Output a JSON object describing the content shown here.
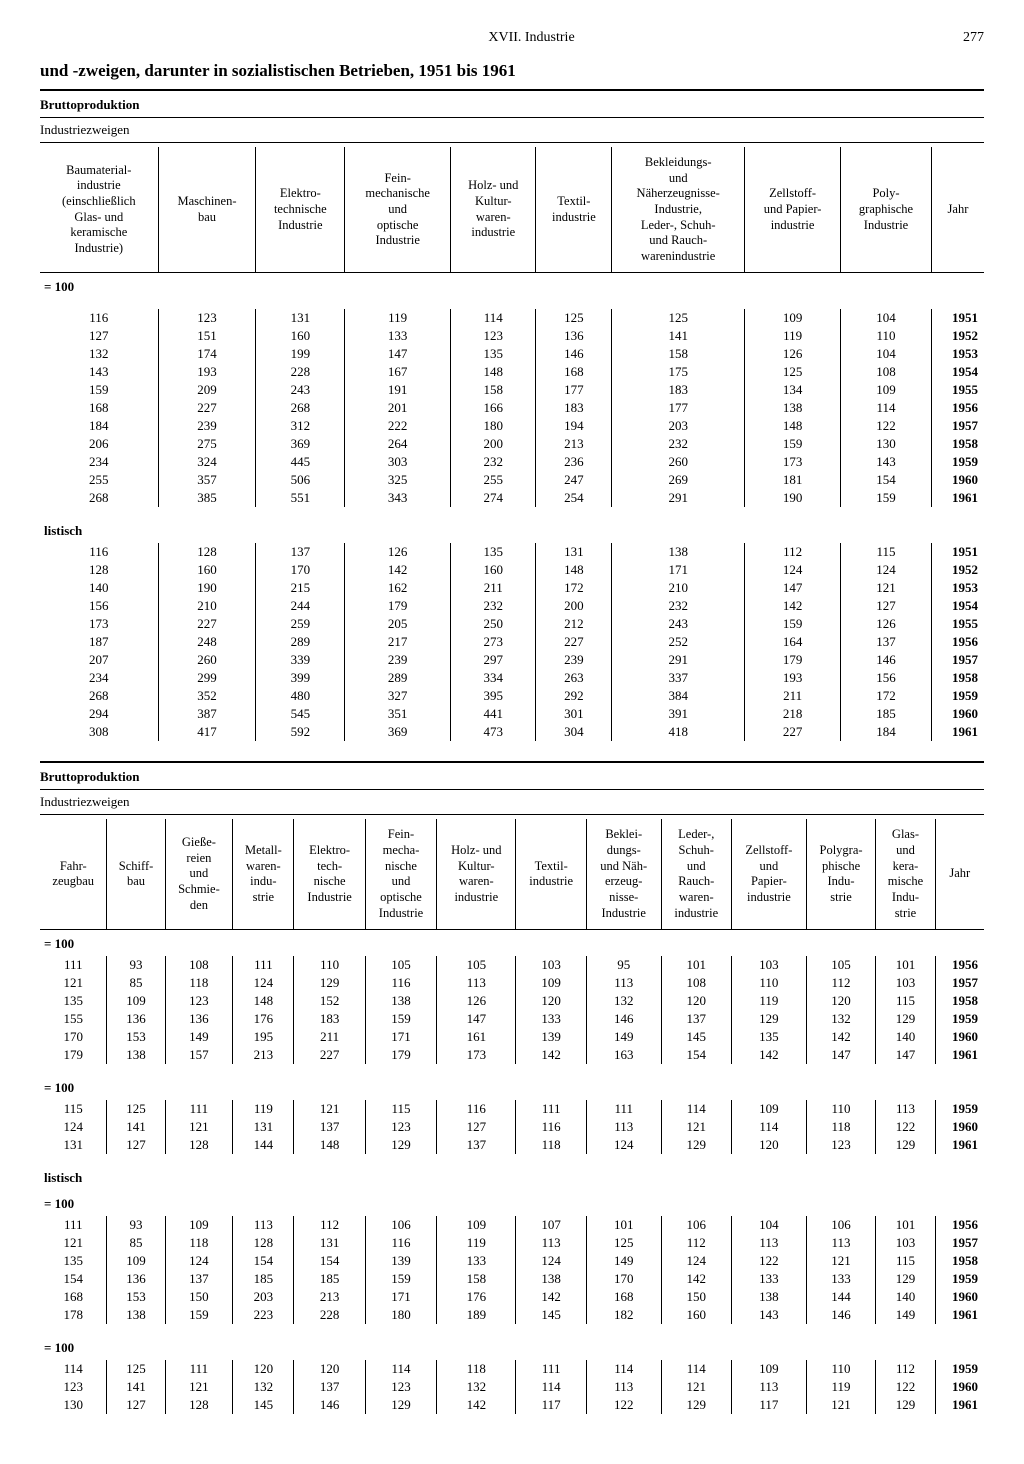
{
  "header": {
    "chapter": "XVII. Industrie",
    "page": "277"
  },
  "title": "und -zweigen, darunter in sozialistischen Betrieben, 1951 bis 1961",
  "labels": {
    "bruttoproduktion": "Bruttoproduktion",
    "industriezweigen": "Industriezweigen",
    "eq100": "= 100",
    "listisch": "listisch",
    "jahr": "Jahr"
  },
  "table1_cols": [
    "Baumaterial-\nindustrie\n(einschließlich\nGlas- und\nkeramische\nIndustrie)",
    "Maschinen-\nbau",
    "Elektro-\ntechnische\nIndustrie",
    "Fein-\nmechanische\nund\noptische\nIndustrie",
    "Holz- und\nKultur-\nwaren-\nindustrie",
    "Textil-\nindustrie",
    "Bekleidungs-\nund\nNäherzeugnisse-\nIndustrie,\nLeder-, Schuh-\nund Rauch-\nwarenindustrie",
    "Zellstoff-\nund Papier-\nindustrie",
    "Poly-\ngraphische\nIndustrie"
  ],
  "table1_g1": {
    "years": [
      "1951",
      "1952",
      "1953",
      "1954",
      "1955",
      "1956",
      "1957",
      "1958",
      "1959",
      "1960",
      "1961"
    ],
    "rows": [
      [
        116,
        123,
        131,
        119,
        114,
        125,
        125,
        109,
        104
      ],
      [
        127,
        151,
        160,
        133,
        123,
        136,
        141,
        119,
        110
      ],
      [
        132,
        174,
        199,
        147,
        135,
        146,
        158,
        126,
        104
      ],
      [
        143,
        193,
        228,
        167,
        148,
        168,
        175,
        125,
        108
      ],
      [
        159,
        209,
        243,
        191,
        158,
        177,
        183,
        134,
        109
      ],
      [
        168,
        227,
        268,
        201,
        166,
        183,
        177,
        138,
        114
      ],
      [
        184,
        239,
        312,
        222,
        180,
        194,
        203,
        148,
        122
      ],
      [
        206,
        275,
        369,
        264,
        200,
        213,
        232,
        159,
        130
      ],
      [
        234,
        324,
        445,
        303,
        232,
        236,
        260,
        173,
        143
      ],
      [
        255,
        357,
        506,
        325,
        255,
        247,
        269,
        181,
        154
      ],
      [
        268,
        385,
        551,
        343,
        274,
        254,
        291,
        190,
        159
      ]
    ]
  },
  "table1_g2": {
    "years": [
      "1951",
      "1952",
      "1953",
      "1954",
      "1955",
      "1956",
      "1957",
      "1958",
      "1959",
      "1960",
      "1961"
    ],
    "rows": [
      [
        116,
        128,
        137,
        126,
        135,
        131,
        138,
        112,
        115
      ],
      [
        128,
        160,
        170,
        142,
        160,
        148,
        171,
        124,
        124
      ],
      [
        140,
        190,
        215,
        162,
        211,
        172,
        210,
        147,
        121
      ],
      [
        156,
        210,
        244,
        179,
        232,
        200,
        232,
        142,
        127
      ],
      [
        173,
        227,
        259,
        205,
        250,
        212,
        243,
        159,
        126
      ],
      [
        187,
        248,
        289,
        217,
        273,
        227,
        252,
        164,
        137
      ],
      [
        207,
        260,
        339,
        239,
        297,
        239,
        291,
        179,
        146
      ],
      [
        234,
        299,
        399,
        289,
        334,
        263,
        337,
        193,
        156
      ],
      [
        268,
        352,
        480,
        327,
        395,
        292,
        384,
        211,
        172
      ],
      [
        294,
        387,
        545,
        351,
        441,
        301,
        391,
        218,
        185
      ],
      [
        308,
        417,
        592,
        369,
        473,
        304,
        418,
        227,
        184
      ]
    ]
  },
  "table2_cols": [
    "Fahr-\nzeugbau",
    "Schiff-\nbau",
    "Gieße-\nreien\nund\nSchmie-\nden",
    "Metall-\nwaren-\nindu-\nstrie",
    "Elektro-\ntech-\nnische\nIndustrie",
    "Fein-\nmecha-\nnische\nund\noptische\nIndustrie",
    "Holz- und\nKultur-\nwaren-\nindustrie",
    "Textil-\nindustrie",
    "Beklei-\ndungs-\nund Näh-\nerzeug-\nnisse-\nIndustrie",
    "Leder-,\nSchuh-\nund\nRauch-\nwaren-\nindustrie",
    "Zellstoff-\nund\nPapier-\nindustrie",
    "Polygra-\nphische\nIndu-\nstrie",
    "Glas-\nund\nkera-\nmische\nIndu-\nstrie"
  ],
  "table2_g1": {
    "years": [
      "1956",
      "1957",
      "1958",
      "1959",
      "1960",
      "1961"
    ],
    "rows": [
      [
        111,
        93,
        108,
        111,
        110,
        105,
        105,
        103,
        95,
        101,
        103,
        105,
        101
      ],
      [
        121,
        85,
        118,
        124,
        129,
        116,
        113,
        109,
        113,
        108,
        110,
        112,
        103
      ],
      [
        135,
        109,
        123,
        148,
        152,
        138,
        126,
        120,
        132,
        120,
        119,
        120,
        115
      ],
      [
        155,
        136,
        136,
        176,
        183,
        159,
        147,
        133,
        146,
        137,
        129,
        132,
        129
      ],
      [
        170,
        153,
        149,
        195,
        211,
        171,
        161,
        139,
        149,
        145,
        135,
        142,
        140
      ],
      [
        179,
        138,
        157,
        213,
        227,
        179,
        173,
        142,
        163,
        154,
        142,
        147,
        147
      ]
    ]
  },
  "table2_g2": {
    "years": [
      "1959",
      "1960",
      "1961"
    ],
    "rows": [
      [
        115,
        125,
        111,
        119,
        121,
        115,
        116,
        111,
        111,
        114,
        109,
        110,
        113
      ],
      [
        124,
        141,
        121,
        131,
        137,
        123,
        127,
        116,
        113,
        121,
        114,
        118,
        122
      ],
      [
        131,
        127,
        128,
        144,
        148,
        129,
        137,
        118,
        124,
        129,
        120,
        123,
        129
      ]
    ]
  },
  "table2_g3": {
    "years": [
      "1956",
      "1957",
      "1958",
      "1959",
      "1960",
      "1961"
    ],
    "rows": [
      [
        111,
        93,
        109,
        113,
        112,
        106,
        109,
        107,
        101,
        106,
        104,
        106,
        101
      ],
      [
        121,
        85,
        118,
        128,
        131,
        116,
        119,
        113,
        125,
        112,
        113,
        113,
        103
      ],
      [
        135,
        109,
        124,
        154,
        154,
        139,
        133,
        124,
        149,
        124,
        122,
        121,
        115
      ],
      [
        154,
        136,
        137,
        185,
        185,
        159,
        158,
        138,
        170,
        142,
        133,
        133,
        129
      ],
      [
        168,
        153,
        150,
        203,
        213,
        171,
        176,
        142,
        168,
        150,
        138,
        144,
        140
      ],
      [
        178,
        138,
        159,
        223,
        228,
        180,
        189,
        145,
        182,
        160,
        143,
        146,
        149
      ]
    ]
  },
  "table2_g4": {
    "years": [
      "1959",
      "1960",
      "1961"
    ],
    "rows": [
      [
        114,
        125,
        111,
        120,
        120,
        114,
        118,
        111,
        114,
        114,
        109,
        110,
        112
      ],
      [
        123,
        141,
        121,
        132,
        137,
        123,
        132,
        114,
        113,
        121,
        113,
        119,
        122
      ],
      [
        130,
        127,
        128,
        145,
        146,
        129,
        142,
        117,
        122,
        129,
        117,
        121,
        129
      ]
    ]
  }
}
